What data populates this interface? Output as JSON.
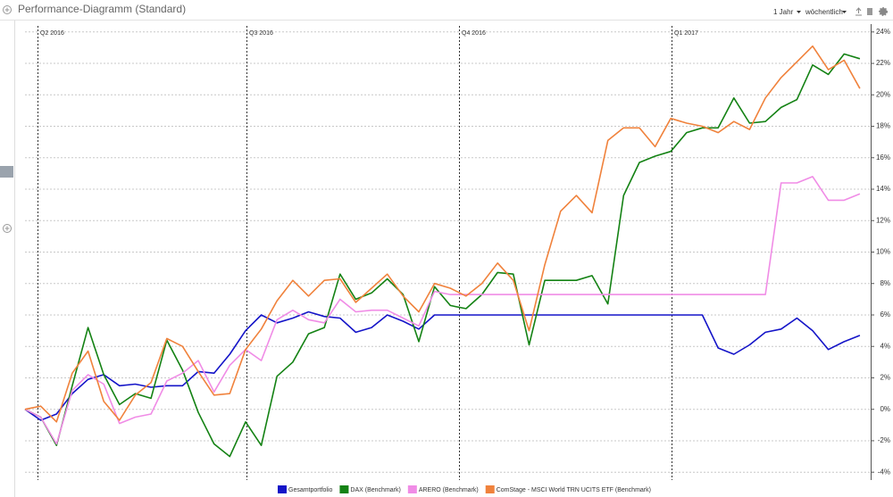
{
  "chart_data": {
    "type": "line",
    "title": "Performance-Diagramm (Standard)",
    "toolbar": {
      "period": "1 Jahr",
      "interval": "wöchentlich"
    },
    "annotations": [
      "Q2 2016",
      "Q3 2016",
      "Q4 2016",
      "Q1 2017"
    ],
    "categories": [
      null,
      null,
      null,
      null,
      null,
      null,
      null,
      null,
      null,
      null,
      null,
      null,
      null,
      null,
      null,
      null,
      null,
      null,
      null,
      null,
      null,
      null,
      null,
      null,
      null,
      null,
      null,
      null,
      null,
      null,
      null,
      null,
      null,
      null,
      null,
      null,
      null,
      null,
      null,
      null,
      null,
      null,
      null,
      null,
      null,
      null,
      null,
      null,
      null,
      null,
      null,
      null,
      null,
      null
    ],
    "series": [
      {
        "name": "Gesamtportfolio",
        "color": "#1414c8",
        "values": [
          0,
          -0.7,
          -0.3,
          1.0,
          1.9,
          2.2,
          1.5,
          1.6,
          1.4,
          1.5,
          1.5,
          2.4,
          2.3,
          3.5,
          5.0,
          6.0,
          5.5,
          5.8,
          6.2,
          5.9,
          5.8,
          4.9,
          5.2,
          6.0,
          5.6,
          5.1,
          6.0,
          6.0,
          6.0,
          6.0,
          6.0,
          6.0,
          6.0,
          6.0,
          6.0,
          6.0,
          6.0,
          6.0,
          6.0,
          6.0,
          6.0,
          6.0,
          6.0,
          6.0,
          3.9,
          3.5,
          4.1,
          4.9,
          5.1,
          5.8,
          5.0,
          3.8,
          4.3,
          4.7
        ]
      },
      {
        "name": "DAX (Benchmark)",
        "color": "#148214",
        "values": [
          0,
          -0.5,
          -2.3,
          1.5,
          5.2,
          2.2,
          0.3,
          1.0,
          0.7,
          4.4,
          2.5,
          -0.2,
          -2.2,
          -3.0,
          -0.8,
          -2.3,
          2.1,
          3.0,
          4.8,
          5.2,
          8.6,
          7.0,
          7.4,
          8.3,
          7.3,
          4.3,
          7.8,
          6.6,
          6.4,
          7.3,
          8.7,
          8.6,
          4.1,
          8.2,
          8.2,
          8.2,
          8.5,
          6.7,
          13.6,
          15.7,
          16.1,
          16.4,
          17.6,
          17.9,
          17.9,
          19.8,
          18.2,
          18.3,
          19.2,
          19.7,
          21.9,
          21.3,
          22.6,
          22.3
        ]
      },
      {
        "name": "ARERO (Benchmark)",
        "color": "#f08ce6",
        "values": [
          0,
          -0.5,
          -2.2,
          1.2,
          2.2,
          1.6,
          -0.9,
          -0.5,
          -0.3,
          1.8,
          2.3,
          3.1,
          1.1,
          2.8,
          3.8,
          3.1,
          5.7,
          6.3,
          5.7,
          5.5,
          7.0,
          6.2,
          6.3,
          6.3,
          5.8,
          5.3,
          7.5,
          7.3,
          7.3,
          7.3,
          7.3,
          7.3,
          7.3,
          7.3,
          7.3,
          7.3,
          7.3,
          7.3,
          7.3,
          7.3,
          7.3,
          7.3,
          7.3,
          7.3,
          7.3,
          7.3,
          7.3,
          7.3,
          14.4,
          14.4,
          14.8,
          13.3,
          13.3,
          13.7
        ]
      },
      {
        "name": "ComStage - MSCI World TRN UCITS ETF (Benchmark)",
        "color": "#f0823c",
        "values": [
          0,
          0.2,
          -0.8,
          2.3,
          3.7,
          0.5,
          -0.7,
          0.9,
          1.7,
          4.5,
          4.0,
          2.4,
          0.9,
          1.0,
          3.8,
          5.1,
          6.9,
          8.2,
          7.2,
          8.2,
          8.3,
          6.8,
          7.7,
          8.6,
          7.2,
          6.2,
          8.0,
          7.7,
          7.2,
          8.0,
          9.3,
          8.2,
          5.0,
          9.2,
          12.6,
          13.6,
          12.5,
          17.1,
          17.9,
          17.9,
          16.7,
          18.5,
          18.2,
          18.0,
          17.6,
          18.3,
          17.8,
          19.8,
          21.1,
          22.1,
          23.1,
          21.6,
          22.2,
          20.4
        ]
      }
    ],
    "ylim": [
      -4.5,
      24.5
    ],
    "yticks": [
      {
        "value": -4,
        "label": "-4%"
      },
      {
        "value": -2,
        "label": "-2%"
      },
      {
        "value": 0,
        "label": "0%"
      },
      {
        "value": 2,
        "label": "2%"
      },
      {
        "value": 4,
        "label": "4%"
      },
      {
        "value": 6,
        "label": "6%"
      },
      {
        "value": 8,
        "label": "8%"
      },
      {
        "value": 10,
        "label": "10%"
      },
      {
        "value": 12,
        "label": "12%"
      },
      {
        "value": 14,
        "label": "14%"
      },
      {
        "value": 16,
        "label": "16%"
      },
      {
        "value": 18,
        "label": "18%"
      },
      {
        "value": 20,
        "label": "20%"
      },
      {
        "value": 22,
        "label": "22%"
      },
      {
        "value": 24,
        "label": "24%"
      }
    ],
    "grid": true,
    "legend": "bottom"
  }
}
